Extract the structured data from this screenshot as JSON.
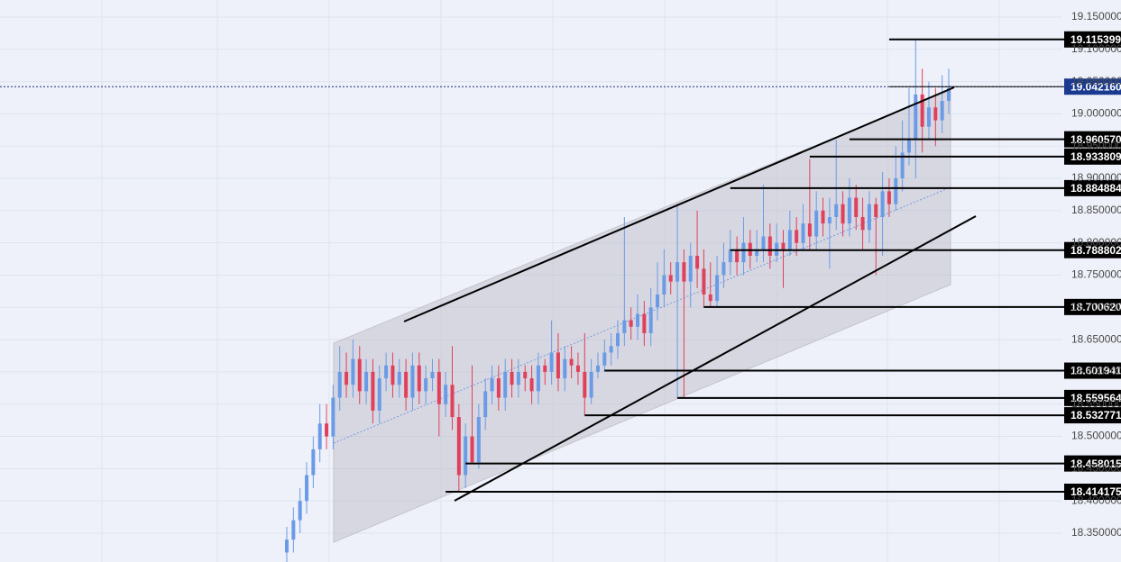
{
  "chart_data": {
    "type": "candlestick",
    "up_color": "#6b9be6",
    "down_color": "#e0405c",
    "grid": true,
    "ylim": [
      18.3053,
      19.1765
    ],
    "yticks": [
      {
        "value": 19.15,
        "label": "19.150000"
      },
      {
        "value": 19.1,
        "label": "19.100000"
      },
      {
        "value": 19.05,
        "label": "19.050000"
      },
      {
        "value": 19.0,
        "label": "19.000000"
      },
      {
        "value": 18.95,
        "label": "18.950000"
      },
      {
        "value": 18.9,
        "label": "18.900000"
      },
      {
        "value": 18.85,
        "label": "18.850000"
      },
      {
        "value": 18.8,
        "label": "18.800000"
      },
      {
        "value": 18.75,
        "label": "18.750000"
      },
      {
        "value": 18.7,
        "label": "18.700000"
      },
      {
        "value": 18.65,
        "label": "18.650000"
      },
      {
        "value": 18.6,
        "label": "18.600000"
      },
      {
        "value": 18.55,
        "label": "18.550000"
      },
      {
        "value": 18.5,
        "label": "18.500000"
      },
      {
        "value": 18.45,
        "label": "18.450000"
      },
      {
        "value": 18.4,
        "label": "18.400000"
      },
      {
        "value": 18.35,
        "label": "18.350000"
      }
    ],
    "current": {
      "value": 19.04216,
      "label": "19.042160",
      "from": 91
    },
    "levels": [
      {
        "value": 19.115399,
        "label": "19.115399",
        "from": 91
      },
      {
        "value": 18.96057,
        "label": "18.960570",
        "from": 85
      },
      {
        "value": 18.933809,
        "label": "18.933809",
        "from": 79
      },
      {
        "value": 18.884884,
        "label": "18.884884",
        "from": 67
      },
      {
        "value": 18.788802,
        "label": "18.788802",
        "from": 67
      },
      {
        "value": 18.70062,
        "label": "18.700620",
        "from": 63
      },
      {
        "value": 18.601941,
        "label": "18.601941",
        "from": 48
      },
      {
        "value": 18.559564,
        "label": "18.559564",
        "from": 59
      },
      {
        "value": 18.532771,
        "label": "18.532771",
        "from": 45
      },
      {
        "value": 18.458015,
        "label": "18.458015",
        "from": 27
      },
      {
        "value": 18.414175,
        "label": "18.414175",
        "from": 24
      }
    ],
    "candles": [
      [
        18.32,
        18.36,
        18.3,
        18.34
      ],
      [
        18.34,
        18.39,
        18.32,
        18.37
      ],
      [
        18.37,
        18.42,
        18.35,
        18.4
      ],
      [
        18.4,
        18.46,
        18.38,
        18.44
      ],
      [
        18.44,
        18.5,
        18.42,
        18.48
      ],
      [
        18.48,
        18.55,
        18.46,
        18.52
      ],
      [
        18.52,
        18.55,
        18.48,
        18.5
      ],
      [
        18.5,
        18.58,
        18.48,
        18.56
      ],
      [
        18.56,
        18.64,
        18.54,
        18.6
      ],
      [
        18.6,
        18.63,
        18.56,
        18.58
      ],
      [
        18.58,
        18.65,
        18.56,
        18.62
      ],
      [
        18.62,
        18.64,
        18.55,
        18.57
      ],
      [
        18.57,
        18.62,
        18.55,
        18.6
      ],
      [
        18.6,
        18.62,
        18.52,
        18.54
      ],
      [
        18.54,
        18.61,
        18.52,
        18.59
      ],
      [
        18.59,
        18.63,
        18.57,
        18.61
      ],
      [
        18.61,
        18.63,
        18.56,
        18.58
      ],
      [
        18.58,
        18.62,
        18.56,
        18.6
      ],
      [
        18.6,
        18.62,
        18.54,
        18.56
      ],
      [
        18.56,
        18.63,
        18.54,
        18.61
      ],
      [
        18.61,
        18.63,
        18.55,
        18.57
      ],
      [
        18.57,
        18.61,
        18.55,
        18.59
      ],
      [
        18.59,
        18.62,
        18.57,
        18.6
      ],
      [
        18.6,
        18.62,
        18.5,
        18.55
      ],
      [
        18.55,
        18.6,
        18.53,
        18.58
      ],
      [
        18.58,
        18.64,
        18.51,
        18.53
      ],
      [
        18.53,
        18.55,
        18.414,
        18.44
      ],
      [
        18.44,
        18.52,
        18.42,
        18.5
      ],
      [
        18.5,
        18.61,
        18.458,
        18.46
      ],
      [
        18.46,
        18.55,
        18.45,
        18.53
      ],
      [
        18.53,
        18.59,
        18.51,
        18.57
      ],
      [
        18.57,
        18.61,
        18.55,
        18.59
      ],
      [
        18.59,
        18.61,
        18.54,
        18.56
      ],
      [
        18.56,
        18.62,
        18.54,
        18.6
      ],
      [
        18.6,
        18.62,
        18.56,
        18.58
      ],
      [
        18.58,
        18.62,
        18.56,
        18.6
      ],
      [
        18.6,
        18.61,
        18.57,
        18.59
      ],
      [
        18.59,
        18.61,
        18.55,
        18.57
      ],
      [
        18.57,
        18.63,
        18.55,
        18.61
      ],
      [
        18.61,
        18.62,
        18.58,
        18.6
      ],
      [
        18.6,
        18.68,
        18.58,
        18.63
      ],
      [
        18.63,
        18.66,
        18.57,
        18.59
      ],
      [
        18.59,
        18.64,
        18.57,
        18.62
      ],
      [
        18.62,
        18.64,
        18.59,
        18.61
      ],
      [
        18.61,
        18.63,
        18.58,
        18.6
      ],
      [
        18.6,
        18.66,
        18.533,
        18.56
      ],
      [
        18.56,
        18.62,
        18.55,
        18.6
      ],
      [
        18.6,
        18.63,
        18.59,
        18.61
      ],
      [
        18.61,
        18.65,
        18.6,
        18.63
      ],
      [
        18.63,
        18.66,
        18.61,
        18.64
      ],
      [
        18.64,
        18.68,
        18.62,
        18.66
      ],
      [
        18.66,
        18.84,
        18.64,
        18.68
      ],
      [
        18.68,
        18.7,
        18.65,
        18.67
      ],
      [
        18.67,
        18.72,
        18.65,
        18.69
      ],
      [
        18.69,
        18.71,
        18.64,
        18.66
      ],
      [
        18.66,
        18.73,
        18.64,
        18.7
      ],
      [
        18.7,
        18.77,
        18.68,
        18.72
      ],
      [
        18.72,
        18.79,
        18.7,
        18.75
      ],
      [
        18.75,
        18.77,
        18.72,
        18.74
      ],
      [
        18.74,
        18.86,
        18.56,
        18.77
      ],
      [
        18.77,
        18.79,
        18.56,
        18.74
      ],
      [
        18.74,
        18.8,
        18.7,
        18.78
      ],
      [
        18.78,
        18.85,
        18.73,
        18.76
      ],
      [
        18.76,
        18.79,
        18.7,
        18.72
      ],
      [
        18.72,
        18.77,
        18.7,
        18.71
      ],
      [
        18.71,
        18.78,
        18.7,
        18.75
      ],
      [
        18.75,
        18.8,
        18.73,
        18.77
      ],
      [
        18.77,
        18.82,
        18.75,
        18.79
      ],
      [
        18.79,
        18.81,
        18.75,
        18.77
      ],
      [
        18.77,
        18.84,
        18.75,
        18.8
      ],
      [
        18.8,
        18.82,
        18.76,
        18.78
      ],
      [
        18.78,
        18.82,
        18.77,
        18.79
      ],
      [
        18.79,
        18.89,
        18.77,
        18.81
      ],
      [
        18.81,
        18.83,
        18.76,
        18.78
      ],
      [
        18.78,
        18.83,
        18.77,
        18.8
      ],
      [
        18.8,
        18.82,
        18.73,
        18.79
      ],
      [
        18.79,
        18.85,
        18.78,
        18.82
      ],
      [
        18.82,
        18.84,
        18.78,
        18.8
      ],
      [
        18.8,
        18.86,
        18.79,
        18.83
      ],
      [
        18.83,
        18.93,
        18.79,
        18.81
      ],
      [
        18.81,
        18.88,
        18.79,
        18.85
      ],
      [
        18.85,
        18.87,
        18.81,
        18.83
      ],
      [
        18.83,
        18.87,
        18.76,
        18.84
      ],
      [
        18.84,
        18.96,
        18.82,
        18.86
      ],
      [
        18.86,
        18.88,
        18.81,
        18.83
      ],
      [
        18.83,
        18.9,
        18.81,
        18.87
      ],
      [
        18.87,
        18.89,
        18.82,
        18.84
      ],
      [
        18.84,
        18.87,
        18.79,
        18.82
      ],
      [
        18.82,
        18.88,
        18.8,
        18.86
      ],
      [
        18.86,
        18.87,
        18.75,
        18.84
      ],
      [
        18.84,
        18.91,
        18.78,
        18.88
      ],
      [
        18.88,
        18.9,
        18.84,
        18.86
      ],
      [
        18.86,
        18.95,
        18.85,
        18.9
      ],
      [
        18.9,
        18.99,
        18.88,
        18.94
      ],
      [
        18.94,
        19.04,
        18.92,
        18.96
      ],
      [
        18.96,
        19.115,
        18.9,
        19.03
      ],
      [
        19.03,
        19.07,
        18.94,
        18.98
      ],
      [
        18.98,
        19.05,
        18.96,
        19.01
      ],
      [
        19.01,
        19.04,
        18.95,
        18.99
      ],
      [
        18.99,
        19.06,
        18.97,
        19.02
      ],
      [
        19.02,
        19.07,
        19.0,
        19.04
      ]
    ]
  }
}
